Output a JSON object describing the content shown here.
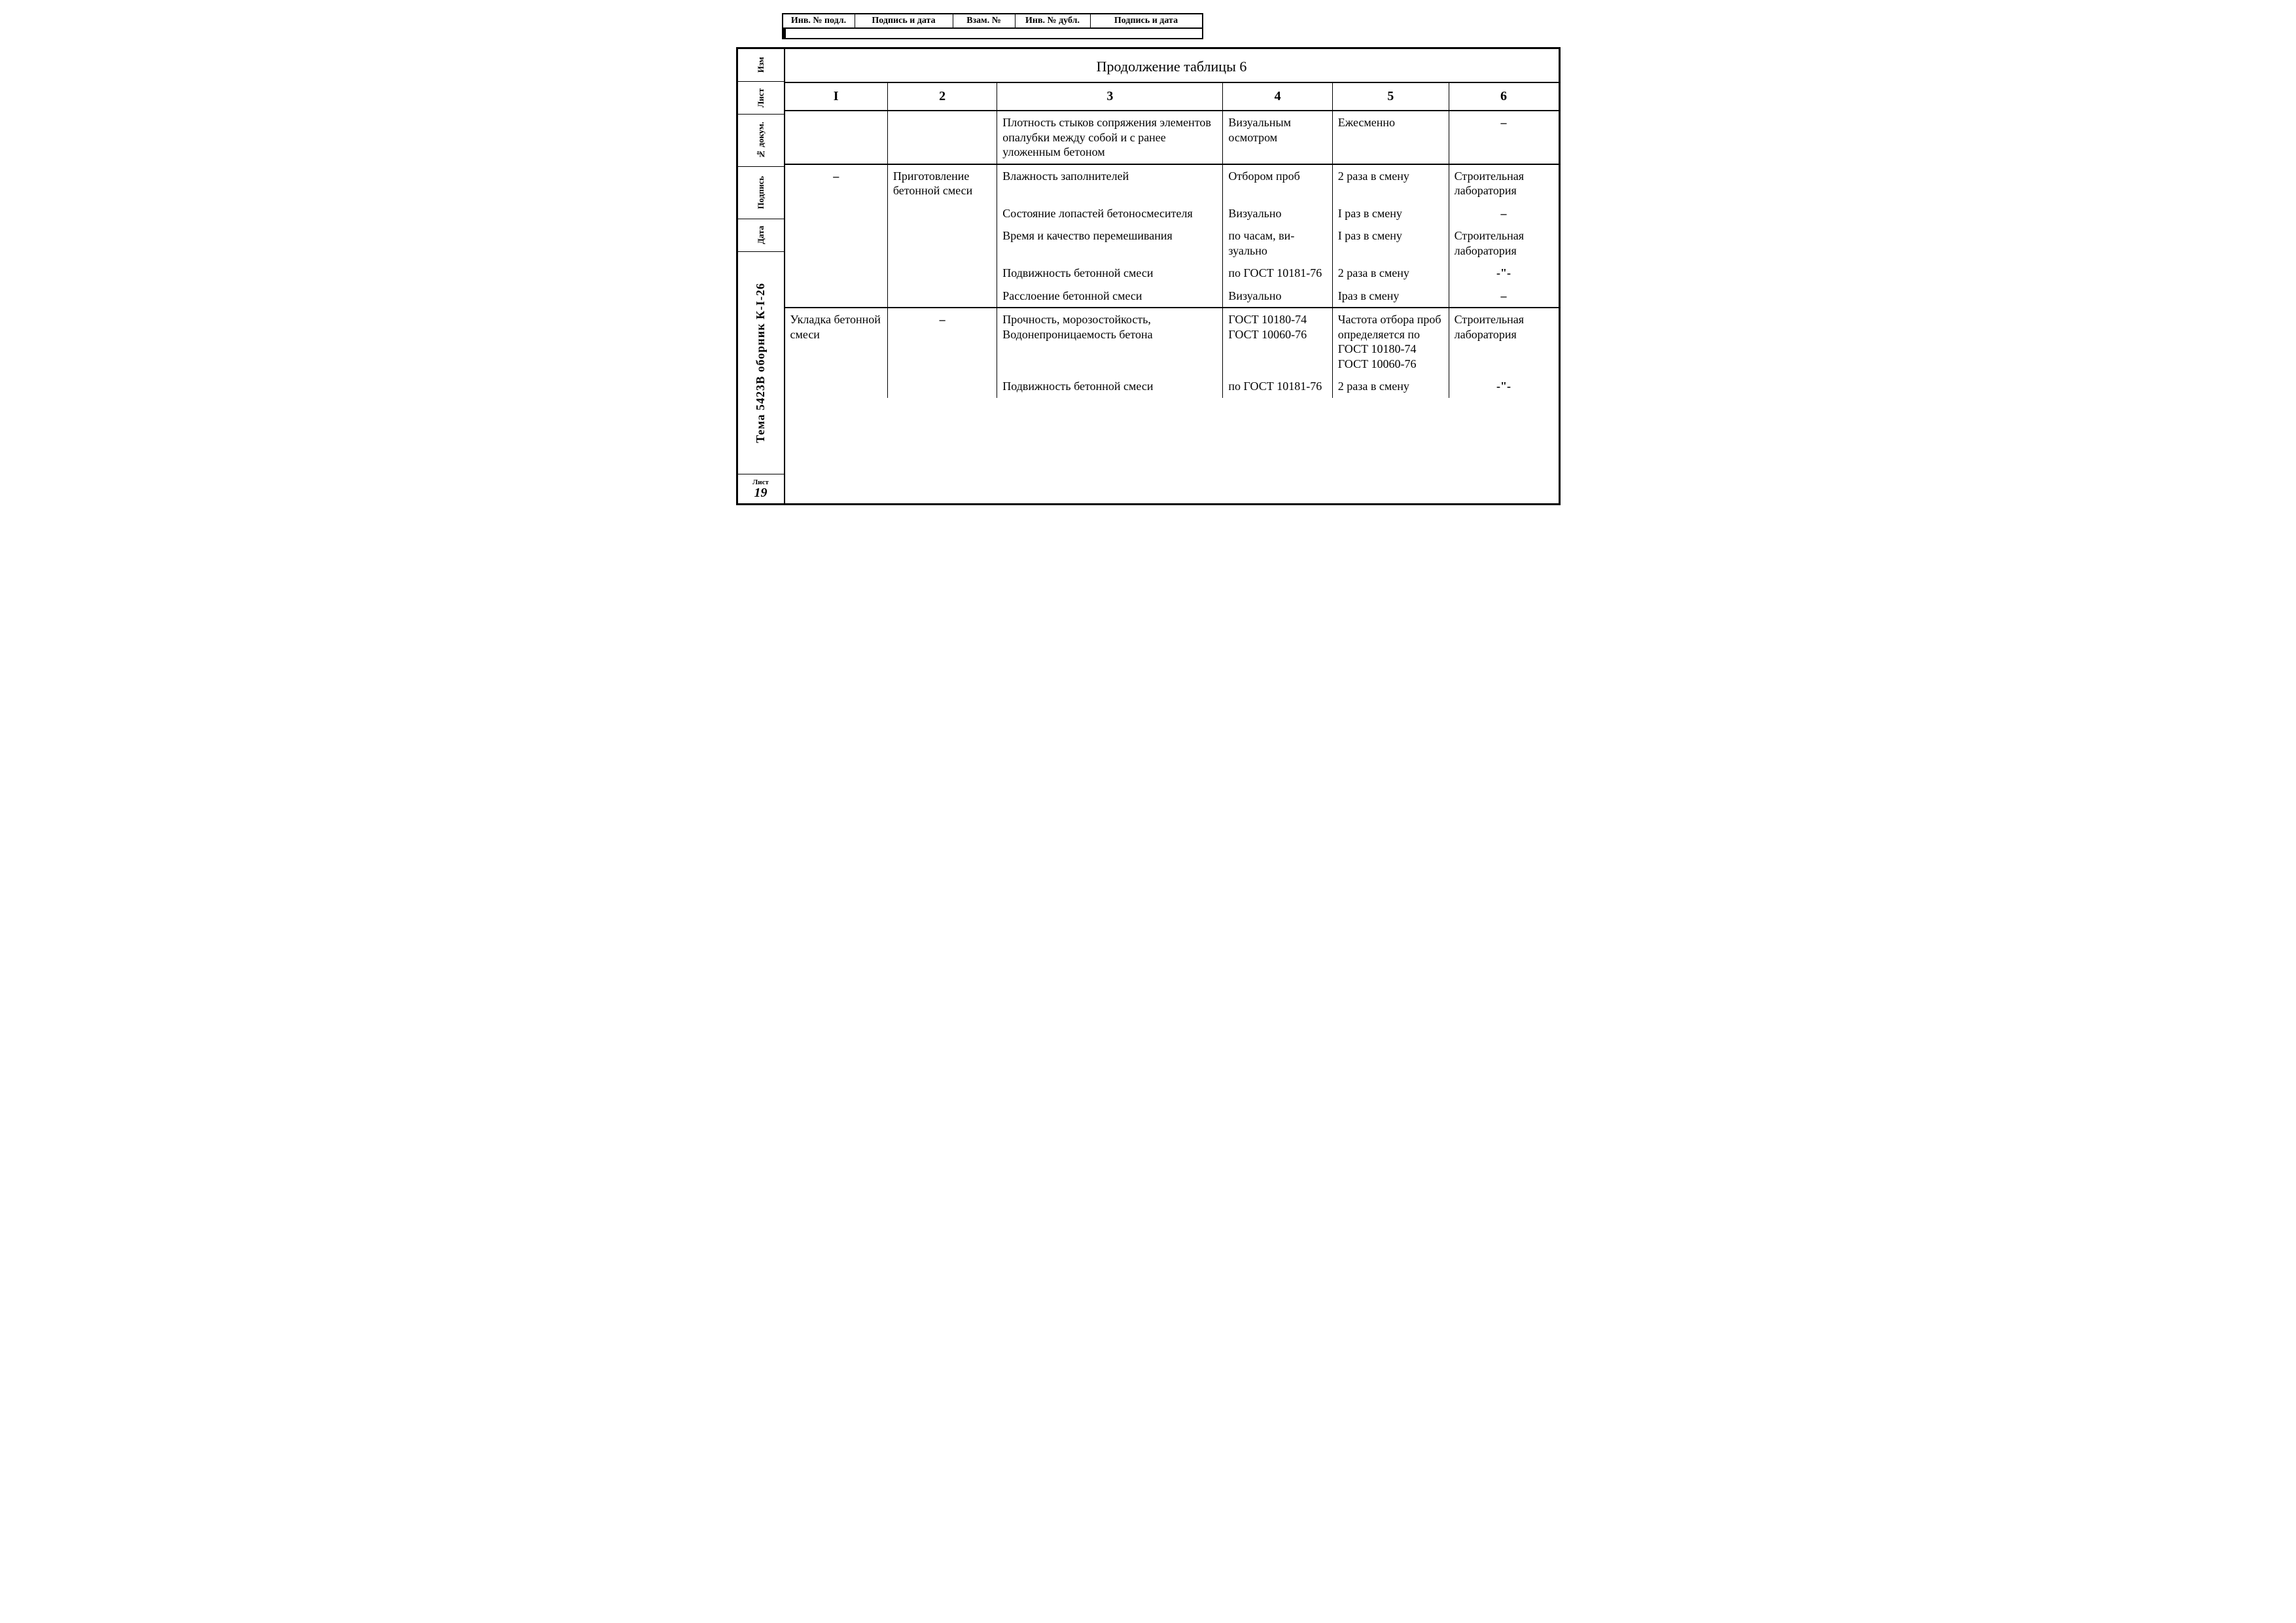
{
  "top_labels": {
    "c1": "Инв. № подл.",
    "c2": "Подпись и дата",
    "c3": "Взам. №",
    "c4": "Инв. № дубл.",
    "c5": "Подпись и дата"
  },
  "left_meta": {
    "l1": "Изм",
    "l2": "Лист",
    "l3": "№ докум.",
    "l4": "Подпись",
    "l5": "Дата",
    "doc_code": "Тема 5423В   оборник К-I-26",
    "sheet_label": "Лист",
    "sheet_no": "19"
  },
  "title": "Продолжение таблицы 6",
  "columns": [
    "I",
    "2",
    "3",
    "4",
    "5",
    "6"
  ],
  "groups": [
    {
      "c1": "",
      "c2": "",
      "rows": [
        {
          "c3": "Плотность стыков сопряжения элементов опалубки между собой и с ранее уложенным бетоном",
          "c4": "Визуальным осмотром",
          "c5": "Ежесменно",
          "c6": "–"
        }
      ]
    },
    {
      "c1": "–",
      "c2": "Приготовление бетонной смеси",
      "rows": [
        {
          "c3": "Влажность заполнителей",
          "c4": "Отбором проб",
          "c5": "2 раза в смену",
          "c6": "Строительная лаборатория"
        },
        {
          "c3": "Состояние лопастей бетоно­смесителя",
          "c4": "Визуально",
          "c5": "I раз в смену",
          "c6": "–"
        },
        {
          "c3": "Время и качество перемеши­вания",
          "c4": "по часам, ви­зуально",
          "c5": "I раз в смену",
          "c6": "Строительная лаборатория"
        },
        {
          "c3": "Подвижность бетонной смеси",
          "c4": "по ГОСТ 10181-76",
          "c5": "2 раза в смену",
          "c6": "-\"-"
        },
        {
          "c3": "Расслоение бетонной смеси",
          "c4": "Визуально",
          "c5": "Iраз в смену",
          "c6": "–"
        }
      ]
    },
    {
      "c1": "Укладка бе­тонной смеси",
      "c2": "–",
      "rows": [
        {
          "c3": "Прочность, морозостойкость, Водонепроницаемость бетона",
          "c4": "ГОСТ 10180-74 ГОСТ 10060-76",
          "c5": "Частота отбора проб опреде­ляется по ГОСТ 10180-74 ГОСТ 10060-76",
          "c6": "Строительная лаборатория"
        },
        {
          "c3": "Подвижность бетонной смеси",
          "c4": "по ГОСТ 10181-76",
          "c5": "2 раза в смену",
          "c6": "-\"-"
        }
      ]
    }
  ]
}
